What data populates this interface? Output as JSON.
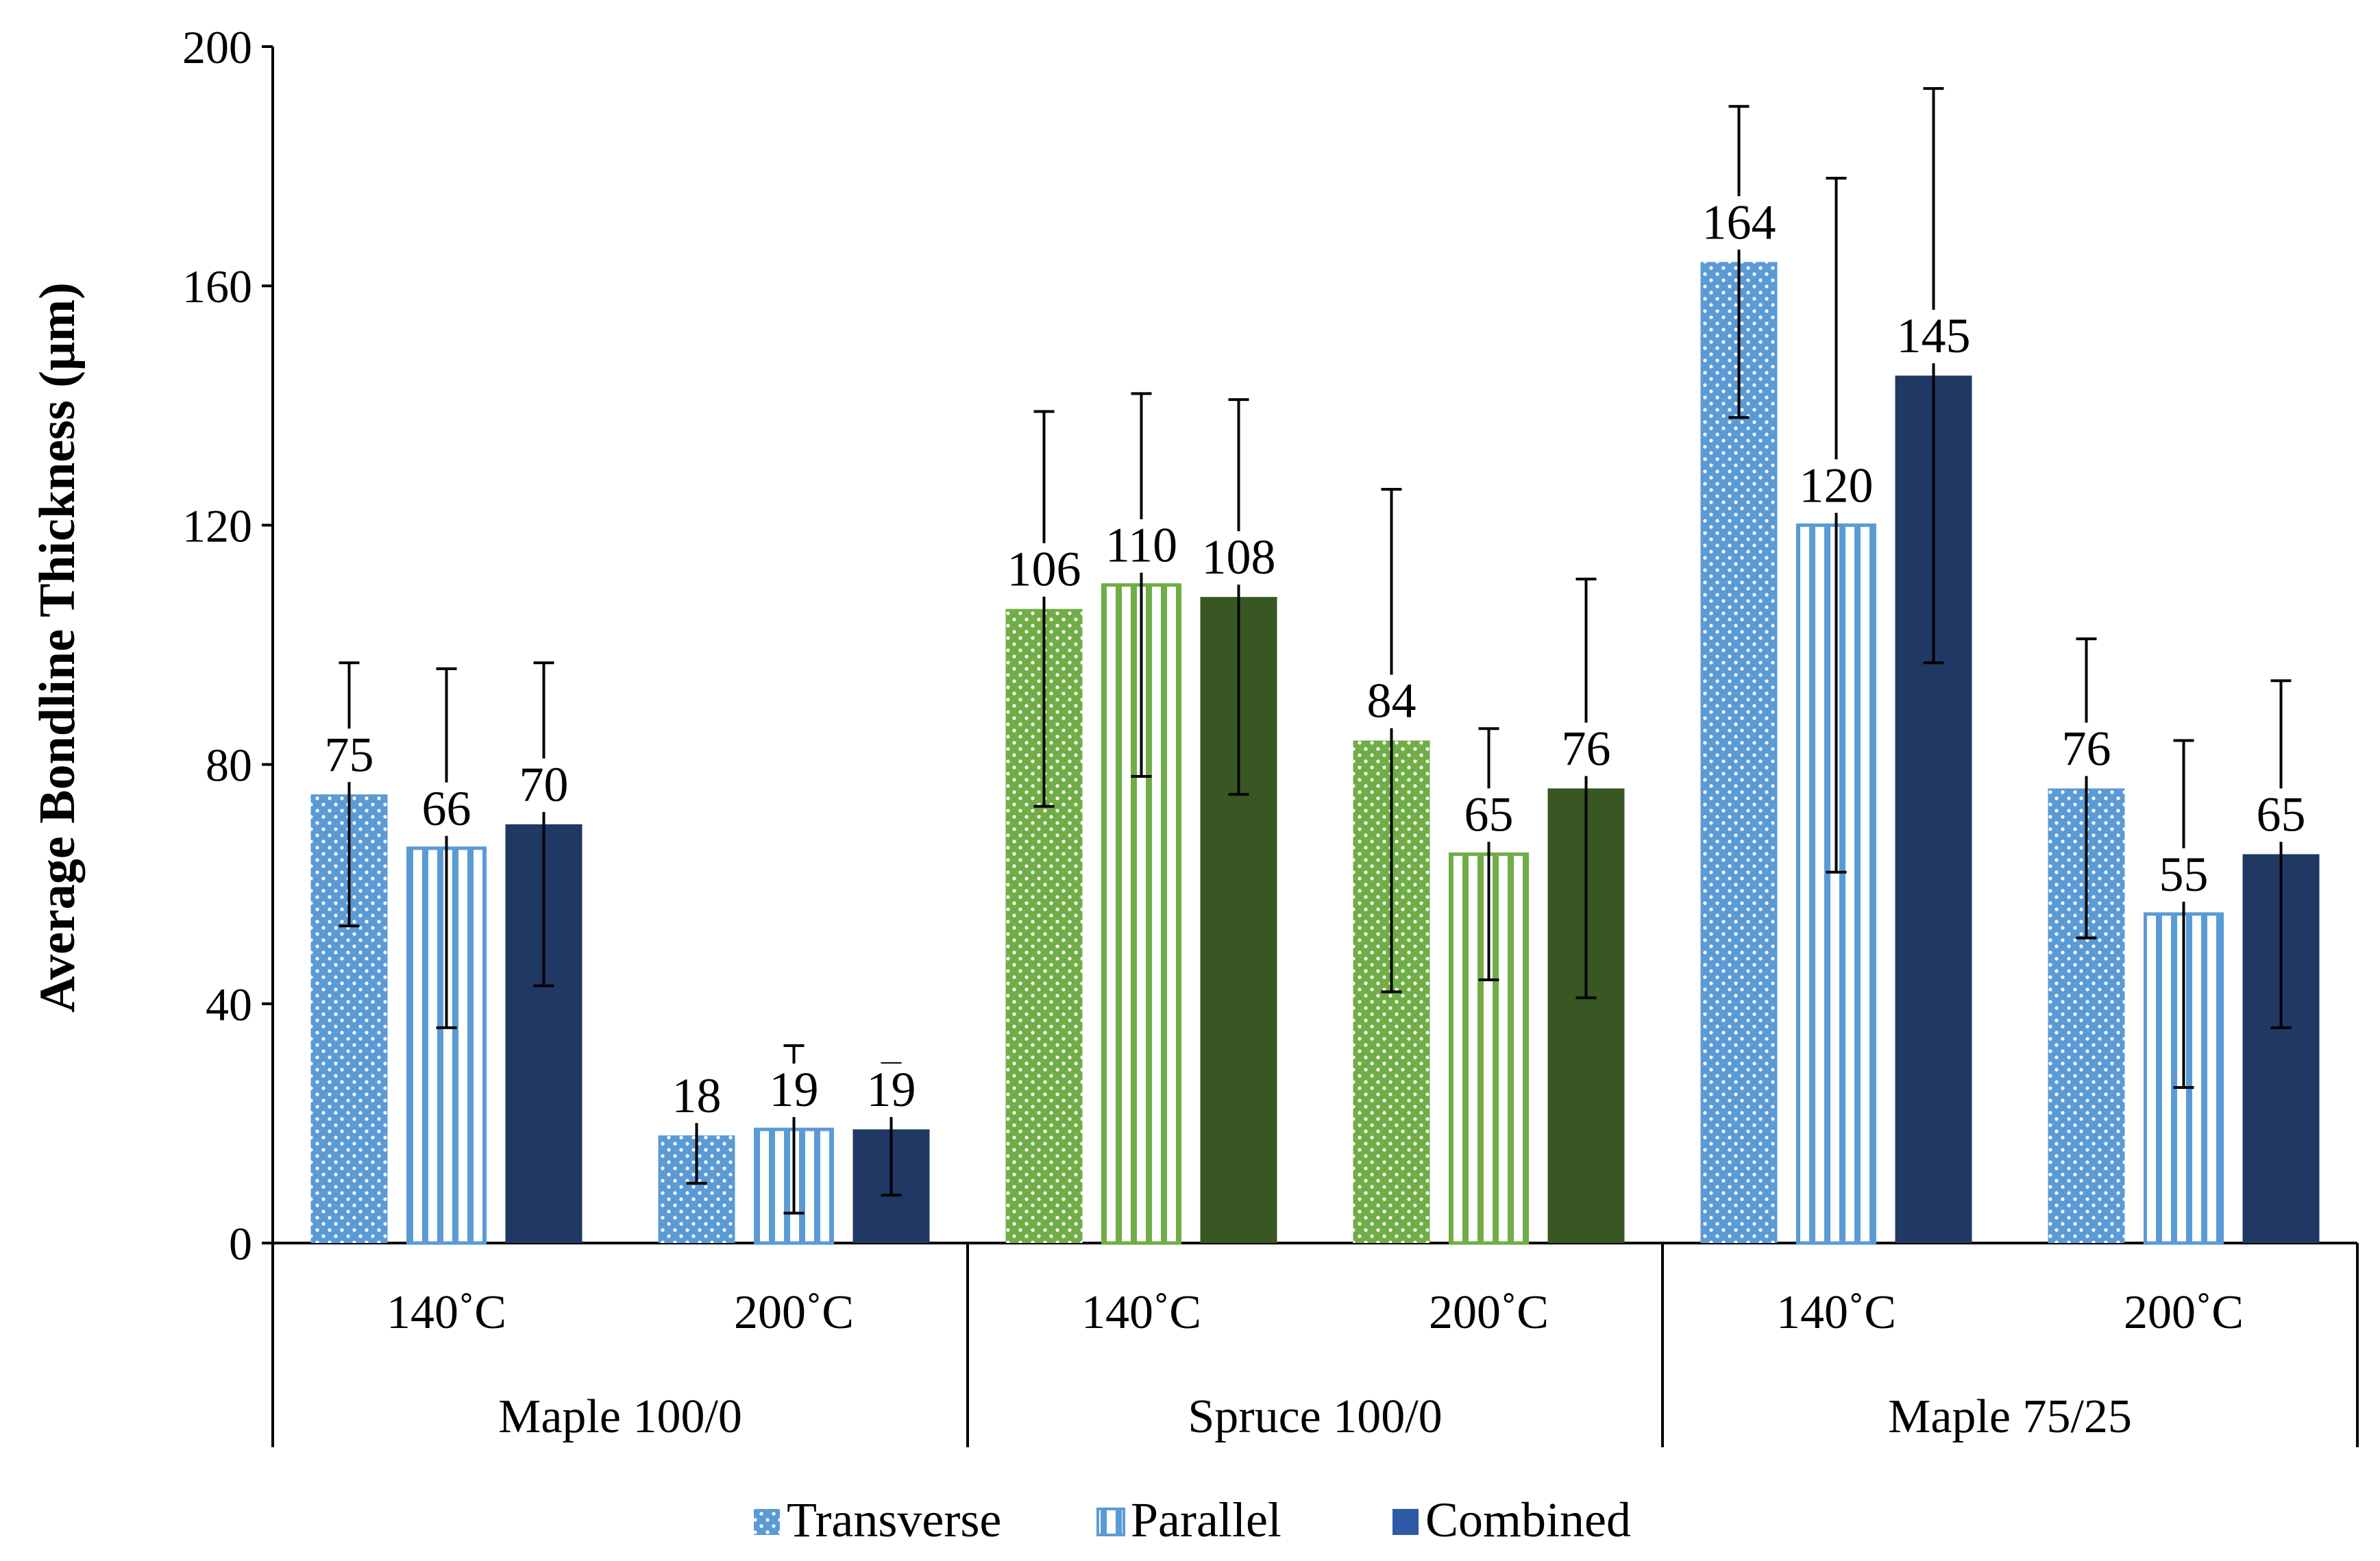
{
  "chart_data": {
    "type": "bar",
    "title": "",
    "xlabel": "",
    "ylabel": "Average Bondline Thickness (µm)",
    "ylim": [
      0,
      200
    ],
    "yticks": [
      0,
      40,
      80,
      120,
      160,
      200
    ],
    "grid": false,
    "legend_position": "bottom",
    "groups": [
      {
        "label": "Maple 100/0",
        "color_light": "#5b9bd5",
        "color_dark": "#203864"
      },
      {
        "label": "Spruce 100/0",
        "color_light": "#70ad47",
        "color_dark": "#385723"
      },
      {
        "label": "Maple 75/25",
        "color_light": "#5b9bd5",
        "color_dark": "#203864"
      }
    ],
    "categories": [
      "140˚C",
      "200˚C",
      "140˚C",
      "200˚C",
      "140˚C",
      "200˚C"
    ],
    "category_group": [
      0,
      0,
      1,
      1,
      2,
      2
    ],
    "series": [
      {
        "name": "Transverse",
        "pattern": "dots",
        "values": [
          75,
          18,
          106,
          84,
          164,
          76
        ],
        "errors": [
          22,
          8,
          33,
          42,
          26,
          25
        ],
        "labels": [
          "75",
          "18",
          "106",
          "84",
          "164",
          "76"
        ]
      },
      {
        "name": "Parallel",
        "pattern": "vertical-stripes",
        "values": [
          66,
          19,
          110,
          65,
          120,
          55
        ],
        "errors": [
          30,
          14,
          32,
          21,
          58,
          29
        ],
        "labels": [
          "66",
          "19",
          "110",
          "65",
          "120",
          "55"
        ]
      },
      {
        "name": "Combined",
        "pattern": "solid",
        "values": [
          70,
          19,
          108,
          76,
          145,
          65
        ],
        "errors": [
          27,
          11,
          33,
          35,
          48,
          29
        ],
        "labels": [
          "70",
          "19",
          "108",
          "76",
          "145",
          "65"
        ]
      }
    ]
  },
  "legend": {
    "items": [
      "Transverse",
      "Parallel",
      "Combined"
    ]
  }
}
